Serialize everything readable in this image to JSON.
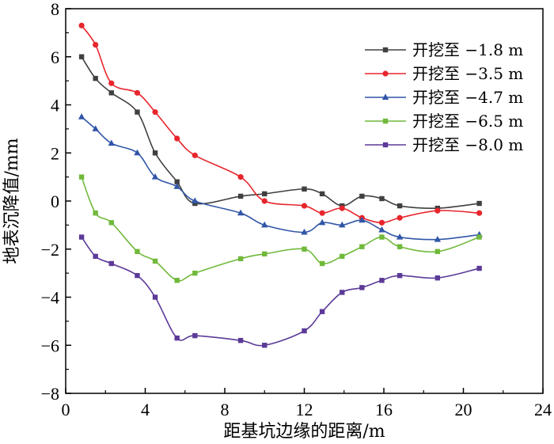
{
  "chart_data": {
    "type": "line",
    "xlabel": "距基坑边缘的距离/m",
    "ylabel": "地表沉降值/mm",
    "xlim": [
      0,
      24
    ],
    "ylim": [
      -8,
      8
    ],
    "xticks": [
      0,
      4,
      8,
      12,
      16,
      20,
      24
    ],
    "yticks": [
      -8,
      -6,
      -4,
      -2,
      0,
      2,
      4,
      6,
      8
    ],
    "legend_position": "top-right",
    "series": [
      {
        "name": "开挖至 −1.8 m",
        "color": "#404040",
        "marker": "square",
        "x": [
          0.8,
          1.5,
          2.3,
          3.6,
          4.5,
          5.6,
          6.5,
          8.8,
          10.0,
          12.0,
          12.9,
          13.9,
          14.9,
          15.9,
          16.8,
          18.7,
          20.8
        ],
        "y": [
          6.0,
          5.1,
          4.5,
          3.7,
          2.0,
          0.8,
          -0.1,
          0.2,
          0.3,
          0.5,
          0.3,
          -0.2,
          0.2,
          0.1,
          -0.2,
          -0.3,
          -0.1
        ]
      },
      {
        "name": "开挖至 −3.5 m",
        "color": "#e8252c",
        "marker": "circle",
        "x": [
          0.8,
          1.5,
          2.3,
          3.6,
          4.5,
          5.6,
          6.5,
          8.8,
          10.0,
          12.0,
          12.9,
          13.9,
          14.9,
          15.9,
          16.8,
          18.7,
          20.8
        ],
        "y": [
          7.3,
          6.5,
          4.9,
          4.5,
          3.7,
          2.6,
          1.9,
          1.0,
          0.0,
          -0.2,
          -0.5,
          -0.3,
          -0.7,
          -0.9,
          -0.7,
          -0.4,
          -0.5
        ]
      },
      {
        "name": "开挖至 −4.7 m",
        "color": "#3155a7",
        "marker": "triangle",
        "x": [
          0.8,
          1.5,
          2.3,
          3.6,
          4.5,
          5.6,
          6.5,
          8.8,
          10.0,
          12.0,
          12.9,
          13.9,
          14.9,
          15.9,
          16.8,
          18.7,
          20.8
        ],
        "y": [
          3.5,
          3.0,
          2.4,
          2.0,
          1.0,
          0.6,
          0.0,
          -0.5,
          -1.0,
          -1.3,
          -0.9,
          -1.0,
          -0.8,
          -1.2,
          -1.5,
          -1.6,
          -1.4
        ]
      },
      {
        "name": "开挖至 −6.5 m",
        "color": "#70b93b",
        "marker": "square",
        "x": [
          0.8,
          1.5,
          2.3,
          3.6,
          4.5,
          5.6,
          6.5,
          8.8,
          10.0,
          12.0,
          12.9,
          13.9,
          14.9,
          15.9,
          16.8,
          18.7,
          20.8
        ],
        "y": [
          1.0,
          -0.5,
          -0.9,
          -2.1,
          -2.5,
          -3.3,
          -3.0,
          -2.4,
          -2.2,
          -2.0,
          -2.6,
          -2.3,
          -1.9,
          -1.5,
          -1.9,
          -2.1,
          -1.5
        ]
      },
      {
        "name": "开挖至 −8.0 m",
        "color": "#5c3a98",
        "marker": "square",
        "x": [
          0.8,
          1.5,
          2.3,
          3.6,
          4.5,
          5.6,
          6.5,
          8.8,
          10.0,
          12.0,
          12.9,
          13.9,
          14.9,
          15.9,
          16.8,
          18.7,
          20.8
        ],
        "y": [
          -1.5,
          -2.3,
          -2.6,
          -3.1,
          -4.0,
          -5.7,
          -5.6,
          -5.8,
          -6.0,
          -5.4,
          -4.6,
          -3.8,
          -3.6,
          -3.3,
          -3.1,
          -3.2,
          -2.8
        ]
      }
    ]
  }
}
